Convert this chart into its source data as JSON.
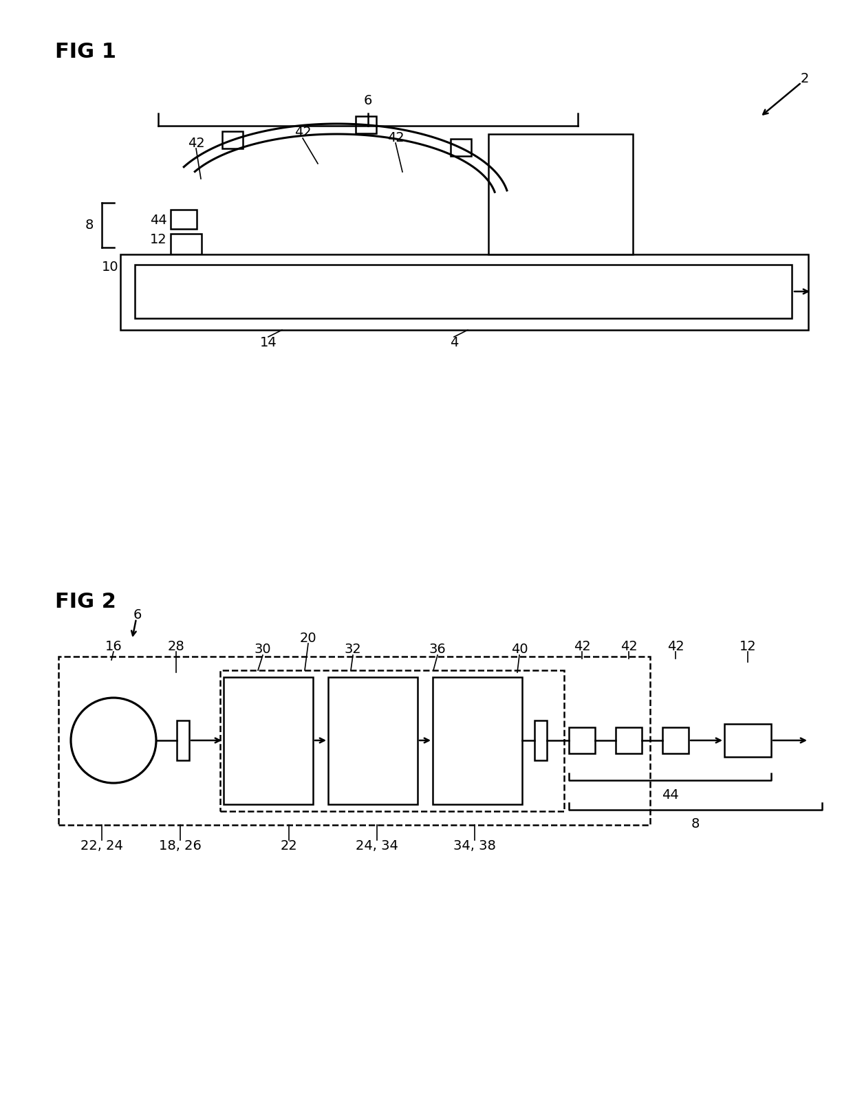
{
  "bg_color": "#ffffff",
  "line_color": "#000000",
  "fig_label_fontsize": 22,
  "label_fontsize": 14
}
